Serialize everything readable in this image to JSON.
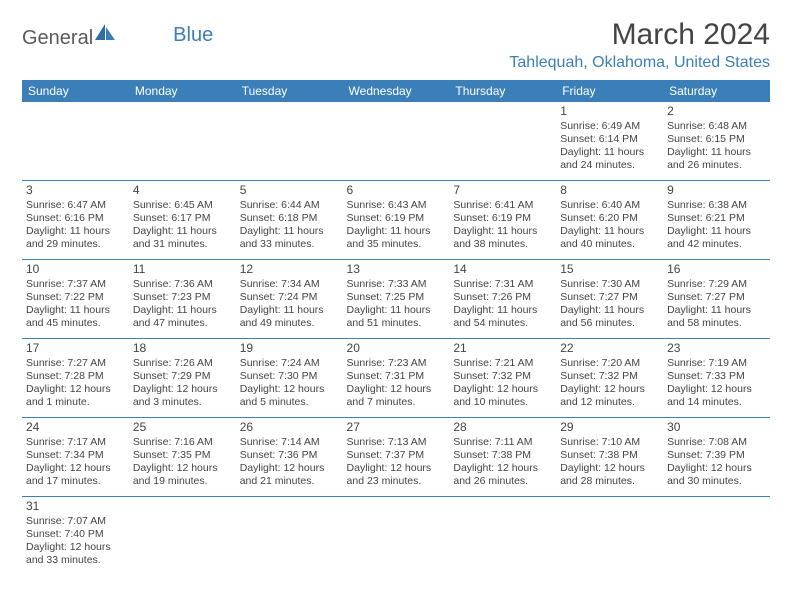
{
  "logo": {
    "part1": "General",
    "part2": "Blue"
  },
  "title": "March 2024",
  "location": "Tahlequah, Oklahoma, United States",
  "colors": {
    "header_bg": "#3b7fb8",
    "header_fg": "#ffffff",
    "border": "#3b7fb8",
    "text": "#444444",
    "accent": "#3b7fb8"
  },
  "weekdays": [
    "Sunday",
    "Monday",
    "Tuesday",
    "Wednesday",
    "Thursday",
    "Friday",
    "Saturday"
  ],
  "weeks": [
    [
      null,
      null,
      null,
      null,
      null,
      {
        "n": "1",
        "sr": "6:49 AM",
        "ss": "6:14 PM",
        "dl": "11 hours and 24 minutes."
      },
      {
        "n": "2",
        "sr": "6:48 AM",
        "ss": "6:15 PM",
        "dl": "11 hours and 26 minutes."
      }
    ],
    [
      {
        "n": "3",
        "sr": "6:47 AM",
        "ss": "6:16 PM",
        "dl": "11 hours and 29 minutes."
      },
      {
        "n": "4",
        "sr": "6:45 AM",
        "ss": "6:17 PM",
        "dl": "11 hours and 31 minutes."
      },
      {
        "n": "5",
        "sr": "6:44 AM",
        "ss": "6:18 PM",
        "dl": "11 hours and 33 minutes."
      },
      {
        "n": "6",
        "sr": "6:43 AM",
        "ss": "6:19 PM",
        "dl": "11 hours and 35 minutes."
      },
      {
        "n": "7",
        "sr": "6:41 AM",
        "ss": "6:19 PM",
        "dl": "11 hours and 38 minutes."
      },
      {
        "n": "8",
        "sr": "6:40 AM",
        "ss": "6:20 PM",
        "dl": "11 hours and 40 minutes."
      },
      {
        "n": "9",
        "sr": "6:38 AM",
        "ss": "6:21 PM",
        "dl": "11 hours and 42 minutes."
      }
    ],
    [
      {
        "n": "10",
        "sr": "7:37 AM",
        "ss": "7:22 PM",
        "dl": "11 hours and 45 minutes."
      },
      {
        "n": "11",
        "sr": "7:36 AM",
        "ss": "7:23 PM",
        "dl": "11 hours and 47 minutes."
      },
      {
        "n": "12",
        "sr": "7:34 AM",
        "ss": "7:24 PM",
        "dl": "11 hours and 49 minutes."
      },
      {
        "n": "13",
        "sr": "7:33 AM",
        "ss": "7:25 PM",
        "dl": "11 hours and 51 minutes."
      },
      {
        "n": "14",
        "sr": "7:31 AM",
        "ss": "7:26 PM",
        "dl": "11 hours and 54 minutes."
      },
      {
        "n": "15",
        "sr": "7:30 AM",
        "ss": "7:27 PM",
        "dl": "11 hours and 56 minutes."
      },
      {
        "n": "16",
        "sr": "7:29 AM",
        "ss": "7:27 PM",
        "dl": "11 hours and 58 minutes."
      }
    ],
    [
      {
        "n": "17",
        "sr": "7:27 AM",
        "ss": "7:28 PM",
        "dl": "12 hours and 1 minute."
      },
      {
        "n": "18",
        "sr": "7:26 AM",
        "ss": "7:29 PM",
        "dl": "12 hours and 3 minutes."
      },
      {
        "n": "19",
        "sr": "7:24 AM",
        "ss": "7:30 PM",
        "dl": "12 hours and 5 minutes."
      },
      {
        "n": "20",
        "sr": "7:23 AM",
        "ss": "7:31 PM",
        "dl": "12 hours and 7 minutes."
      },
      {
        "n": "21",
        "sr": "7:21 AM",
        "ss": "7:32 PM",
        "dl": "12 hours and 10 minutes."
      },
      {
        "n": "22",
        "sr": "7:20 AM",
        "ss": "7:32 PM",
        "dl": "12 hours and 12 minutes."
      },
      {
        "n": "23",
        "sr": "7:19 AM",
        "ss": "7:33 PM",
        "dl": "12 hours and 14 minutes."
      }
    ],
    [
      {
        "n": "24",
        "sr": "7:17 AM",
        "ss": "7:34 PM",
        "dl": "12 hours and 17 minutes."
      },
      {
        "n": "25",
        "sr": "7:16 AM",
        "ss": "7:35 PM",
        "dl": "12 hours and 19 minutes."
      },
      {
        "n": "26",
        "sr": "7:14 AM",
        "ss": "7:36 PM",
        "dl": "12 hours and 21 minutes."
      },
      {
        "n": "27",
        "sr": "7:13 AM",
        "ss": "7:37 PM",
        "dl": "12 hours and 23 minutes."
      },
      {
        "n": "28",
        "sr": "7:11 AM",
        "ss": "7:38 PM",
        "dl": "12 hours and 26 minutes."
      },
      {
        "n": "29",
        "sr": "7:10 AM",
        "ss": "7:38 PM",
        "dl": "12 hours and 28 minutes."
      },
      {
        "n": "30",
        "sr": "7:08 AM",
        "ss": "7:39 PM",
        "dl": "12 hours and 30 minutes."
      }
    ],
    [
      {
        "n": "31",
        "sr": "7:07 AM",
        "ss": "7:40 PM",
        "dl": "12 hours and 33 minutes."
      },
      null,
      null,
      null,
      null,
      null,
      null
    ]
  ],
  "labels": {
    "sunrise": "Sunrise:",
    "sunset": "Sunset:",
    "daylight": "Daylight:"
  }
}
